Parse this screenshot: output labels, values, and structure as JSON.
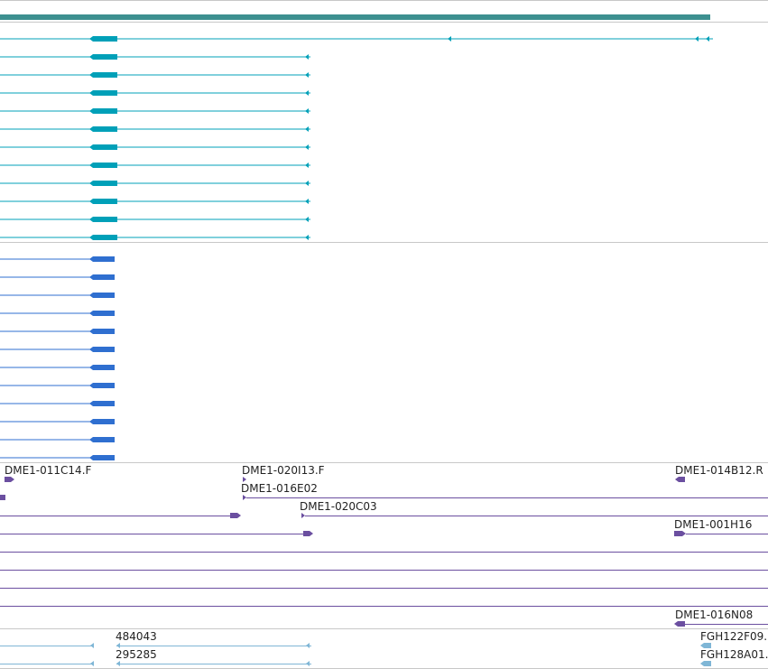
{
  "colors": {
    "separator": "#c8c8c8",
    "top_bar": "#3d9090",
    "teal_track": "#00a0b8",
    "blue_track": "#2f6fd0",
    "purple_track": "#6b4fa0",
    "lightblue_track": "#7fb6d6",
    "label_text": "#222222"
  },
  "tracks": {
    "teal_transcripts": {
      "name": "teal-transcript-track",
      "rows": 12
    },
    "blue_transcripts": {
      "name": "blue-transcript-track",
      "rows": 12
    },
    "purple_features": {
      "name": "purple-clone-track",
      "labels": [
        "DME1-011C14.F",
        "DME1-020I13.F",
        "DME1-014B12.R",
        "DME1-016E02",
        "DME1-020C03",
        "DME1-001H16",
        "DME1-016N08"
      ]
    },
    "lightblue_features": {
      "name": "lightblue-alignment-track",
      "labels": [
        "484043",
        "295285",
        "FGH122F09.",
        "FGH128A01."
      ]
    }
  }
}
